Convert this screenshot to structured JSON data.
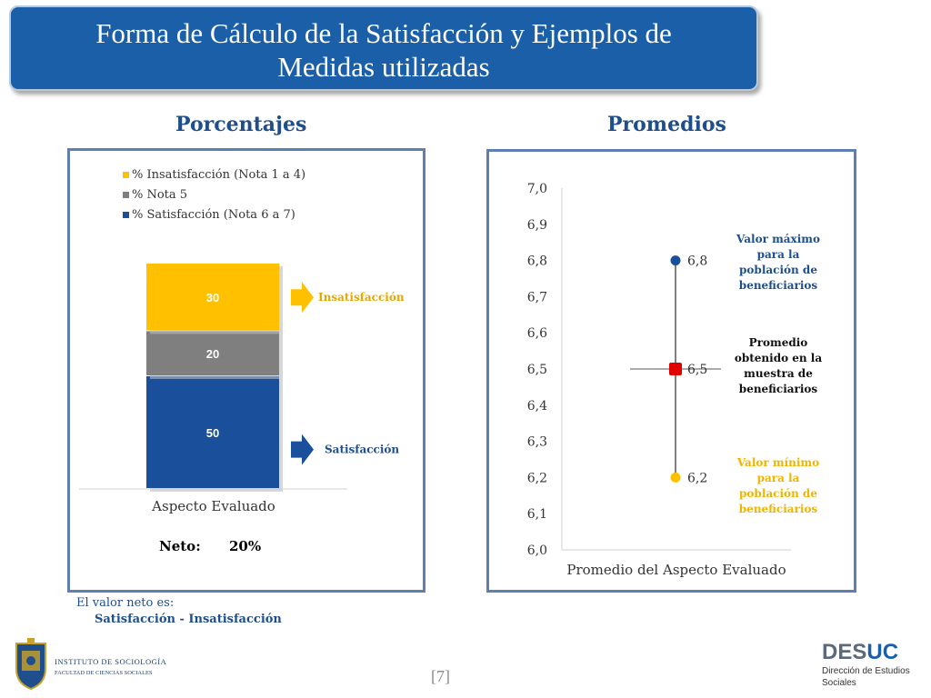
{
  "title": {
    "line1": "Forma de Cálculo de la Satisfacción y Ejemplos de",
    "line2": "Medidas utilizadas"
  },
  "left_heading": "Porcentajes",
  "right_heading": "Promedios",
  "chart_data": [
    {
      "type": "bar",
      "stacked": true,
      "categories": [
        "Aspecto Evaluado"
      ],
      "series": [
        {
          "name": "% Satisfacción (Nota 6 a 7)",
          "values": [
            50
          ],
          "color": "#1a4f9c"
        },
        {
          "name": "% Nota 5",
          "values": [
            20
          ],
          "color": "#7f7f7f"
        },
        {
          "name": "% Insatisfacción (Nota 1 a 4)",
          "values": [
            30
          ],
          "color": "#ffc000"
        }
      ],
      "legend_order": [
        "% Insatisfacción (Nota 1 a 4)",
        "% Nota 5",
        "% Satisfacción (Nota 6 a 7)"
      ],
      "legend_position": "top",
      "annotations": [
        {
          "text": "Insatisfacción",
          "color": "#e6a800",
          "arrow": "right"
        },
        {
          "text": "Satisfacción",
          "color": "#1f4e8c",
          "arrow": "right"
        }
      ],
      "neto_label": "Neto:",
      "neto_value": "20%"
    },
    {
      "type": "scatter",
      "categories": [
        "Promedio del Aspecto Evaluado"
      ],
      "ylim": [
        6.0,
        7.0
      ],
      "yticks": [
        "6,0",
        "6,1",
        "6,2",
        "6,3",
        "6,4",
        "6,5",
        "6,6",
        "6,7",
        "6,8",
        "6,9",
        "7,0"
      ],
      "points": [
        {
          "y": 6.8,
          "label": "6,8",
          "color": "#1a4f9c",
          "shape": "circle"
        },
        {
          "y": 6.5,
          "label": "6,5",
          "color": "#e00000",
          "shape": "square"
        },
        {
          "y": 6.2,
          "label": "6,2",
          "color": "#ffc000",
          "shape": "circle"
        }
      ],
      "annotations": [
        {
          "lines": [
            "Valor máximo",
            "para la",
            "población de",
            "beneficiarios"
          ],
          "color": "#1f4e8c"
        },
        {
          "lines": [
            "Promedio",
            "obtenido en la",
            "muestra de",
            "beneficiarios"
          ],
          "color": "#111111"
        },
        {
          "lines": [
            "Valor mínimo",
            "para la",
            "población de",
            "beneficiarios"
          ],
          "color": "#f0b400"
        }
      ]
    }
  ],
  "note": {
    "line1": "El valor neto es:",
    "line2": "Satisfacción - Insatisfacción"
  },
  "logo_left": {
    "line1": "INSTITUTO DE SOCIOLOGÍA",
    "line2": "FACULTAD DE CIENCIAS SOCIALES"
  },
  "logo_right": {
    "brand_a": "DES",
    "brand_b": "UC",
    "line1": "Dirección de Estudios",
    "line2": "Sociales"
  },
  "page_number": "[7]"
}
